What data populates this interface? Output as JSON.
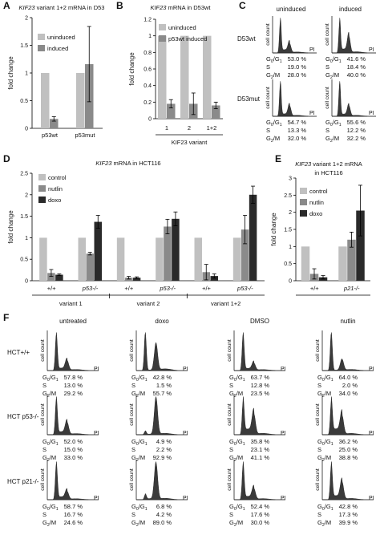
{
  "panels": {
    "A": {
      "letter": "A",
      "title_gene": "KIF23",
      "title_rest": " variant 1+2 mRNA in D53",
      "ylabel": "fold change",
      "legend": [
        "uninduced",
        "induced"
      ],
      "categories": [
        "p53wt",
        "p53mut"
      ],
      "ticks": [
        "0",
        "0.5",
        "1",
        "1.5",
        "2"
      ]
    },
    "B": {
      "letter": "B",
      "title_gene": "KIF23",
      "title_rest": " mRNA in D53wt",
      "ylabel": "fold change",
      "legend": [
        "uninduced",
        "p53wt induced"
      ],
      "categories": [
        "1",
        "2",
        "1+2"
      ],
      "xlabel": "KIF23 variant",
      "ticks": [
        "0",
        "0.2",
        "0.4",
        "0.6",
        "0.8",
        "1",
        "1.2"
      ]
    },
    "C": {
      "letter": "C",
      "col_labels": [
        "uninduced",
        "induced"
      ],
      "row_labels": [
        "D53wt",
        "D53mut"
      ],
      "axis_y": "cell count",
      "axis_x": "PI",
      "g1_label": "G",
      "g1_sub": "0",
      "g1_sub2": "1",
      "s_label": "S",
      "g2_label": "G",
      "g2_sub": "2",
      "g2_rest": "/M",
      "cells": [
        {
          "g1": "53.0 %",
          "s": "19.0 %",
          "g2": "28.0 %"
        },
        {
          "g1": "41.6 %",
          "s": "18.4 %",
          "g2": "40.0 %"
        },
        {
          "g1": "54.7 %",
          "s": "13.3 %",
          "g2": "32.0 %"
        },
        {
          "g1": "55.6 %",
          "s": "12.2 %",
          "g2": "32.2 %"
        }
      ]
    },
    "D": {
      "letter": "D",
      "title_gene": "KIF23",
      "title_rest": " mRNA in HCT116",
      "ylabel": "fold change",
      "legend": [
        "control",
        "nutlin",
        "doxo"
      ],
      "genotypes": [
        "+/+",
        "p53-/-",
        "+/+",
        "p53-/-",
        "+/+",
        "p53-/-"
      ],
      "groups": [
        "variant 1",
        "variant 2",
        "variant 1+2"
      ],
      "ticks": [
        "0",
        "0.5",
        "1",
        "1.5",
        "2",
        "2.5"
      ]
    },
    "E": {
      "letter": "E",
      "title_gene": "KIF23",
      "title_rest": " variant 1+2 mRNA",
      "title_line2": "in HCT116",
      "ylabel": "fold change",
      "legend": [
        "control",
        "nutlin",
        "doxo"
      ],
      "genotypes": [
        "+/+",
        "p21-/-"
      ],
      "ticks": [
        "0",
        "0.5",
        "1",
        "1.5",
        "2",
        "2.5",
        "3"
      ]
    },
    "F": {
      "letter": "F",
      "col_labels": [
        "untreated",
        "doxo",
        "DMSO",
        "nutlin"
      ],
      "row_labels": [
        "HCT+/+",
        "HCT p53-/-",
        "HCT p21-/-"
      ],
      "cells": [
        [
          {
            "g1": "57.8 %",
            "s": "13.0 %",
            "g2": "29.2 %"
          },
          {
            "g1": "42.8 %",
            "s": "1.5 %",
            "g2": "55.7 %"
          },
          {
            "g1": "63.7 %",
            "s": "12.8 %",
            "g2": "23.5 %"
          },
          {
            "g1": "64.0 %",
            "s": "2.0 %",
            "g2": "34.0 %"
          }
        ],
        [
          {
            "g1": "52.0 %",
            "s": "15.0 %",
            "g2": "33.0 %"
          },
          {
            "g1": "4.9 %",
            "s": "2.2 %",
            "g2": "92.9 %"
          },
          {
            "g1": "35.8 %",
            "s": "23.1 %",
            "g2": "41.1 %"
          },
          {
            "g1": "36.2 %",
            "s": "25.0 %",
            "g2": "38.8 %"
          }
        ],
        [
          {
            "g1": "58.7 %",
            "s": "16.7 %",
            "g2": "24.6 %"
          },
          {
            "g1": "6.8 %",
            "s": "4.2 %",
            "g2": "89.0 %"
          },
          {
            "g1": "52.4 %",
            "s": "17.6 %",
            "g2": "30.0 %"
          },
          {
            "g1": "42.8 %",
            "s": "17.3 %",
            "g2": "39.9 %"
          }
        ]
      ]
    }
  },
  "colors": {
    "light": "#c0c0c0",
    "mid": "#8a8a8a",
    "dark": "#2a2a2a",
    "hist": "#3a3a3a"
  },
  "chart_data": [
    {
      "panel": "A",
      "type": "bar",
      "categories": [
        "p53wt",
        "p53mut"
      ],
      "series": [
        {
          "name": "uninduced",
          "values": [
            1.0,
            1.0
          ],
          "errors": [
            0,
            0
          ]
        },
        {
          "name": "induced",
          "values": [
            0.17,
            1.16
          ],
          "errors": [
            0.04,
            0.68
          ]
        }
      ],
      "ylim": [
        0,
        2
      ]
    },
    {
      "panel": "B",
      "type": "bar",
      "categories": [
        "1",
        "2",
        "1+2"
      ],
      "series": [
        {
          "name": "uninduced",
          "values": [
            1.0,
            1.0,
            1.0
          ],
          "errors": [
            0,
            0,
            0
          ]
        },
        {
          "name": "p53wt induced",
          "values": [
            0.18,
            0.18,
            0.16
          ],
          "errors": [
            0.05,
            0.13,
            0.04
          ]
        }
      ],
      "ylim": [
        0,
        1.2
      ]
    },
    {
      "panel": "D",
      "type": "bar",
      "categories": [
        "+/+",
        "p53-/-",
        "+/+",
        "p53-/-",
        "+/+",
        "p53-/-"
      ],
      "series": [
        {
          "name": "control",
          "values": [
            1.0,
            1.0,
            1.0,
            1.0,
            1.0,
            1.0
          ],
          "errors": [
            0,
            0,
            0,
            0,
            0,
            0
          ]
        },
        {
          "name": "nutlin",
          "values": [
            0.18,
            0.63,
            0.07,
            1.26,
            0.2,
            1.19
          ],
          "errors": [
            0.08,
            0.03,
            0.03,
            0.17,
            0.18,
            0.33
          ]
        },
        {
          "name": "doxo",
          "values": [
            0.14,
            1.37,
            0.07,
            1.44,
            0.11,
            2.0
          ],
          "errors": [
            0.02,
            0.15,
            0.02,
            0.16,
            0.05,
            0.2
          ]
        }
      ],
      "ylim": [
        0,
        2.5
      ]
    },
    {
      "panel": "E",
      "type": "bar",
      "categories": [
        "+/+",
        "p21-/-"
      ],
      "series": [
        {
          "name": "control",
          "values": [
            1.0,
            1.0
          ],
          "errors": [
            0,
            0
          ]
        },
        {
          "name": "nutlin",
          "values": [
            0.2,
            1.2
          ],
          "errors": [
            0.15,
            0.22
          ]
        },
        {
          "name": "doxo",
          "values": [
            0.1,
            2.05
          ],
          "errors": [
            0.05,
            0.74
          ]
        }
      ],
      "ylim": [
        0,
        3
      ]
    }
  ]
}
